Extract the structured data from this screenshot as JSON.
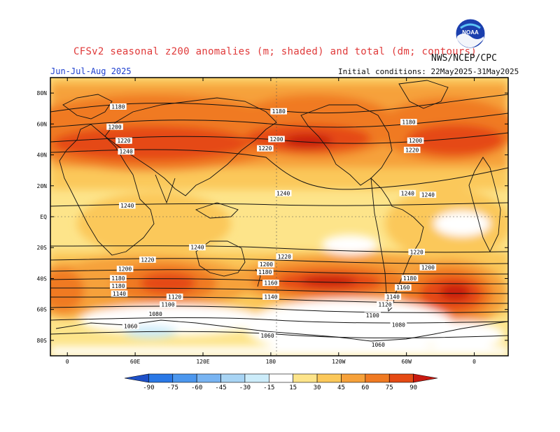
{
  "header": {
    "title": "CFSv2 seasonal z200 anomalies (m; shaded) and total (dm; contours)",
    "agency": "NWS/NCEP/CPC",
    "season": "Jun-Jul-Aug 2025",
    "initial_conditions": "Initial conditions: 22May2025-31May2025",
    "logo_text": "NOAA"
  },
  "colors": {
    "anom_neg_90": "#1e50c8",
    "anom_neg_75": "#2a78e6",
    "anom_neg_60": "#4c97ee",
    "anom_neg_45": "#78b4f2",
    "anom_neg_30": "#a8d4f4",
    "anom_neg_15": "#ccecfa",
    "anom_neutral": "#ffffff",
    "anom_15": "#fde48a",
    "anom_30": "#fbc85a",
    "anom_45": "#f6a13a",
    "anom_60": "#f07a22",
    "anom_75": "#e54a14",
    "anom_90": "#c81a10"
  },
  "chart_data": {
    "type": "heatmap",
    "projection": "cylindrical equidistant, centered on 180",
    "field_shaded": "200-hPa geopotential height anomaly (m)",
    "field_contoured": "200-hPa total geopotential height (dm)",
    "lat_ticks": [
      "80N",
      "60N",
      "40N",
      "20N",
      "EQ",
      "20S",
      "40S",
      "60S",
      "80S"
    ],
    "lon_ticks": [
      "0",
      "60E",
      "120E",
      "180",
      "120W",
      "60W",
      "0"
    ],
    "xlim": [
      -15,
      390
    ],
    "ylim": [
      -90,
      90
    ],
    "colorbar": {
      "levels": [
        -90,
        -75,
        -60,
        -45,
        -30,
        -15,
        15,
        30,
        45,
        60,
        75,
        90
      ],
      "labels": [
        "-90",
        "-75",
        "-60",
        "-45",
        "-30",
        "-15",
        "15",
        "30",
        "45",
        "60",
        "75",
        "90"
      ]
    },
    "contour_labels": [
      {
        "text": "1180",
        "lon": 45,
        "lat": 71
      },
      {
        "text": "1200",
        "lon": 42,
        "lat": 58
      },
      {
        "text": "1220",
        "lon": 50,
        "lat": 49
      },
      {
        "text": "1240",
        "lon": 52,
        "lat": 42
      },
      {
        "text": "1180",
        "lon": 187,
        "lat": 68
      },
      {
        "text": "1200",
        "lon": 185,
        "lat": 50
      },
      {
        "text": "1220",
        "lon": 175,
        "lat": 44
      },
      {
        "text": "1180",
        "lon": 302,
        "lat": 61
      },
      {
        "text": "1200",
        "lon": 308,
        "lat": 49
      },
      {
        "text": "1220",
        "lon": 305,
        "lat": 43
      },
      {
        "text": "1240",
        "lon": 191,
        "lat": 15
      },
      {
        "text": "1240",
        "lon": 301,
        "lat": 15
      },
      {
        "text": "1240",
        "lon": 319,
        "lat": 14
      },
      {
        "text": "1240",
        "lon": 53,
        "lat": 7
      },
      {
        "text": "1240",
        "lon": 115,
        "lat": -20
      },
      {
        "text": "1220",
        "lon": 71,
        "lat": -28
      },
      {
        "text": "1220",
        "lon": 192,
        "lat": -26
      },
      {
        "text": "1220",
        "lon": 309,
        "lat": -23
      },
      {
        "text": "1200",
        "lon": 51,
        "lat": -34
      },
      {
        "text": "1200",
        "lon": 176,
        "lat": -31
      },
      {
        "text": "1200",
        "lon": 319,
        "lat": -33
      },
      {
        "text": "1180",
        "lon": 45,
        "lat": -40
      },
      {
        "text": "1180",
        "lon": 175,
        "lat": -36
      },
      {
        "text": "1180",
        "lon": 303,
        "lat": -40
      },
      {
        "text": "1180",
        "lon": 45,
        "lat": -45
      },
      {
        "text": "1160",
        "lon": 180,
        "lat": -43
      },
      {
        "text": "1160",
        "lon": 297,
        "lat": -46
      },
      {
        "text": "1140",
        "lon": 46,
        "lat": -50
      },
      {
        "text": "1140",
        "lon": 180,
        "lat": -52
      },
      {
        "text": "1140",
        "lon": 288,
        "lat": -52
      },
      {
        "text": "1120",
        "lon": 95,
        "lat": -52
      },
      {
        "text": "1120",
        "lon": 281,
        "lat": -57
      },
      {
        "text": "1100",
        "lon": 89,
        "lat": -57
      },
      {
        "text": "1100",
        "lon": 270,
        "lat": -64
      },
      {
        "text": "1080",
        "lon": 78,
        "lat": -63
      },
      {
        "text": "1080",
        "lon": 293,
        "lat": -70
      },
      {
        "text": "1060",
        "lon": 56,
        "lat": -71
      },
      {
        "text": "1060",
        "lon": 177,
        "lat": -77
      },
      {
        "text": "1060",
        "lon": 275,
        "lat": -83
      }
    ]
  }
}
